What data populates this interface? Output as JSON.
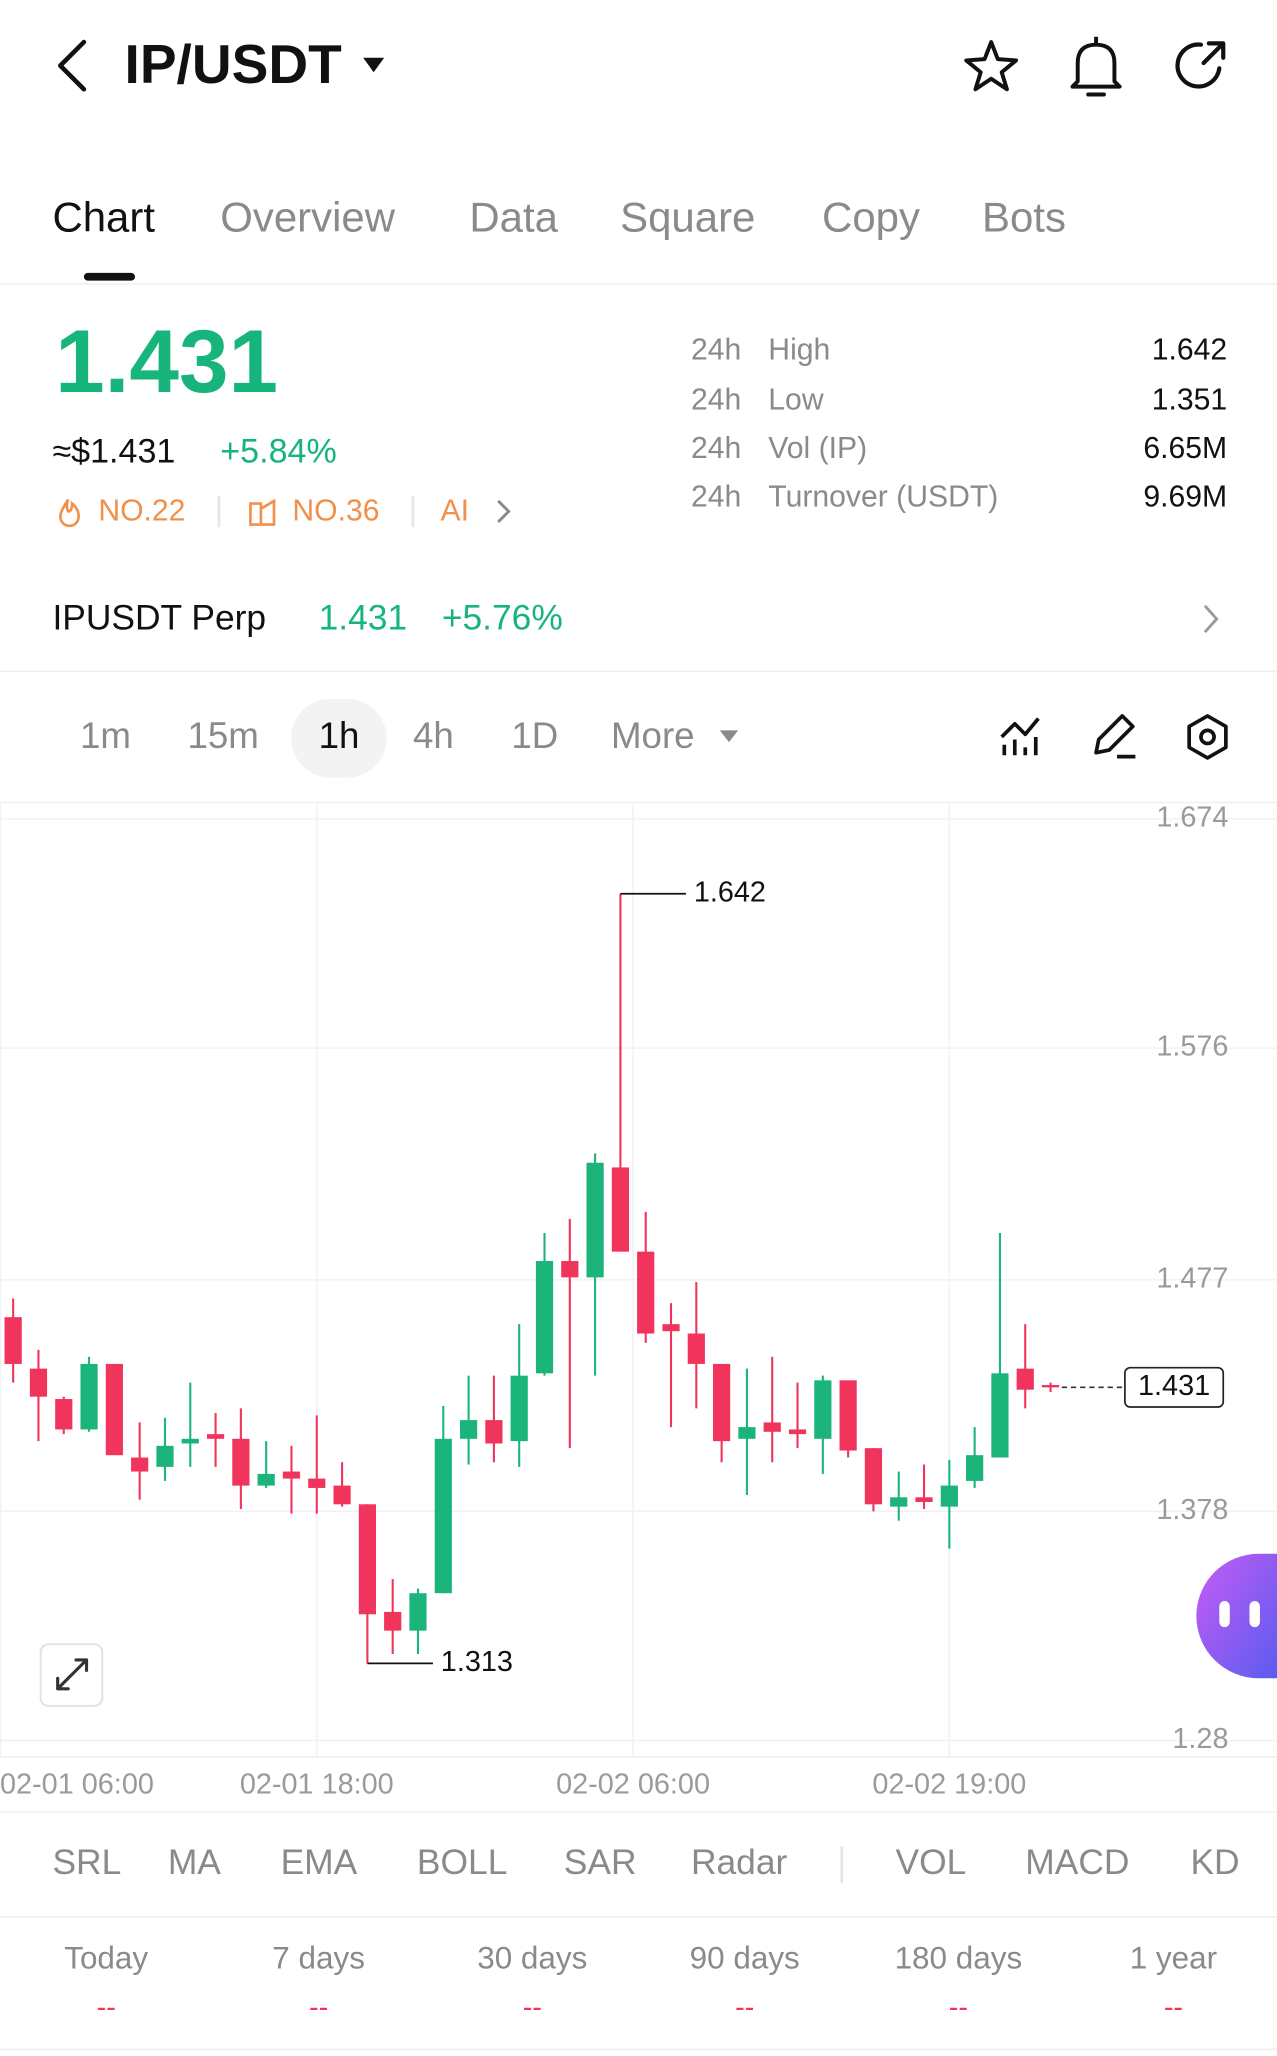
{
  "header": {
    "pair": "IP/USDT"
  },
  "tabs": [
    "Chart",
    "Overview",
    "Data",
    "Square",
    "Copy",
    "Bots"
  ],
  "price": {
    "last": "1.431",
    "usd": "≈$1.431",
    "change": "+5.84%",
    "rank_hot": "NO.22",
    "rank_sector": "NO.36",
    "ai": "AI"
  },
  "stats": [
    {
      "period": "24h",
      "label": "High",
      "value": "1.642"
    },
    {
      "period": "24h",
      "label": "Low",
      "value": "1.351"
    },
    {
      "period": "24h",
      "label": "Vol (IP)",
      "value": "6.65M"
    },
    {
      "period": "24h",
      "label": "Turnover (USDT)",
      "value": "9.69M"
    }
  ],
  "perp": {
    "name": "IPUSDT Perp",
    "price": "1.431",
    "change": "+5.76%"
  },
  "intervals": [
    "1m",
    "15m",
    "1h",
    "4h",
    "1D",
    "More"
  ],
  "chart_data": {
    "type": "candlestick",
    "x": [
      0,
      1,
      2,
      3,
      4,
      5,
      6,
      7,
      8,
      9,
      10,
      11,
      12,
      13,
      14,
      15,
      16,
      17,
      18,
      19,
      20,
      21,
      22,
      23,
      24,
      25,
      26,
      27,
      28,
      29,
      30,
      31,
      32,
      33,
      34,
      35,
      36,
      37,
      38,
      39,
      40,
      41
    ],
    "open": [
      1.461,
      1.439,
      1.426,
      1.413,
      1.441,
      1.401,
      1.397,
      1.407,
      1.411,
      1.409,
      1.389,
      1.395,
      1.392,
      1.389,
      1.381,
      1.335,
      1.327,
      1.343,
      1.409,
      1.417,
      1.408,
      1.437,
      1.485,
      1.478,
      1.525,
      1.489,
      1.458,
      1.454,
      1.441,
      1.409,
      1.416,
      1.413,
      1.409,
      1.434,
      1.405,
      1.38,
      1.384,
      1.38,
      1.391,
      1.401,
      1.439,
      1.432
    ],
    "high": [
      1.469,
      1.447,
      1.427,
      1.444,
      1.441,
      1.416,
      1.418,
      1.433,
      1.42,
      1.422,
      1.408,
      1.406,
      1.419,
      1.399,
      1.381,
      1.349,
      1.345,
      1.423,
      1.436,
      1.436,
      1.458,
      1.497,
      1.503,
      1.531,
      1.642,
      1.506,
      1.467,
      1.476,
      1.441,
      1.439,
      1.444,
      1.433,
      1.436,
      1.434,
      1.405,
      1.395,
      1.398,
      1.4,
      1.414,
      1.497,
      1.458,
      1.433
    ],
    "low": [
      1.433,
      1.408,
      1.411,
      1.412,
      1.402,
      1.383,
      1.391,
      1.397,
      1.397,
      1.379,
      1.388,
      1.377,
      1.377,
      1.38,
      1.313,
      1.317,
      1.317,
      1.343,
      1.398,
      1.399,
      1.397,
      1.436,
      1.405,
      1.436,
      1.489,
      1.45,
      1.414,
      1.422,
      1.399,
      1.385,
      1.399,
      1.405,
      1.394,
      1.401,
      1.378,
      1.374,
      1.379,
      1.362,
      1.388,
      1.401,
      1.422,
      1.429
    ],
    "close": [
      1.441,
      1.427,
      1.413,
      1.441,
      1.402,
      1.395,
      1.406,
      1.409,
      1.409,
      1.389,
      1.394,
      1.392,
      1.388,
      1.381,
      1.334,
      1.327,
      1.343,
      1.409,
      1.417,
      1.407,
      1.436,
      1.485,
      1.478,
      1.527,
      1.489,
      1.454,
      1.455,
      1.441,
      1.408,
      1.414,
      1.412,
      1.411,
      1.434,
      1.404,
      1.381,
      1.384,
      1.382,
      1.389,
      1.402,
      1.437,
      1.43,
      1.431
    ],
    "up_color": "#1bb57b",
    "down_color": "#f0345c",
    "xlim": [
      -0.52,
      49.95
    ],
    "ylim": [
      1.273,
      1.681
    ],
    "xticks": [
      {
        "value": -0.5,
        "label": "02-01 06:00"
      },
      {
        "value": 12,
        "label": "02-01 18:00"
      },
      {
        "value": 24.5,
        "label": "02-02 06:00"
      },
      {
        "value": 37,
        "label": "02-02 19:00"
      }
    ],
    "yticks": [
      1.674,
      1.576,
      1.477,
      1.378,
      1.28
    ],
    "grid": true
  },
  "indicators": [
    "SRL",
    "MA",
    "EMA",
    "BOLL",
    "SAR",
    "Radar",
    "VOL",
    "MACD",
    "KD"
  ],
  "periods": [
    {
      "label": "Today",
      "value": "--"
    },
    {
      "label": "7 days",
      "value": "--"
    },
    {
      "label": "30 days",
      "value": "--"
    },
    {
      "label": "90 days",
      "value": "--"
    },
    {
      "label": "180 days",
      "value": "--"
    },
    {
      "label": "1 year",
      "value": "--"
    }
  ]
}
